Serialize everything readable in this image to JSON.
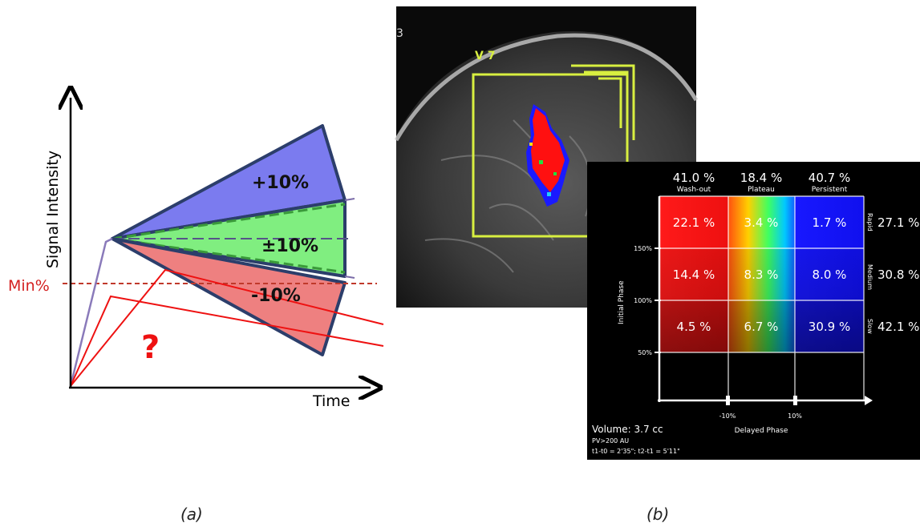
{
  "panel_a": {
    "y_axis_label": "Signal Intensity",
    "x_axis_label": "Time",
    "min_label": "Min%",
    "upper_label": "+10%",
    "middle_label": "±10%",
    "lower_label": "-10%",
    "question_mark": "?",
    "caption": "(a)",
    "colors": {
      "upper": "#7b7bef",
      "middle": "#7fef7f",
      "lower": "#ef7f7f",
      "min_line": "#c0392b",
      "question": "#ee1111"
    }
  },
  "panel_b": {
    "mri_label": "V 7",
    "mri_corner": "3",
    "caption": "(b)",
    "table": {
      "columns": [
        {
          "percent": "41.0 %",
          "label": "Wash-out"
        },
        {
          "percent": "18.4 %",
          "label": "Plateau"
        },
        {
          "percent": "40.7 %",
          "label": "Persistent"
        }
      ],
      "rows": [
        {
          "label": "Rapid",
          "percent": "27.1 %",
          "cells": [
            "22.1 %",
            "3.4 %",
            "1.7 %"
          ]
        },
        {
          "label": "Medium",
          "percent": "30.8 %",
          "cells": [
            "14.4 %",
            "8.3 %",
            "8.0 %"
          ]
        },
        {
          "label": "Slow",
          "percent": "42.1 %",
          "cells": [
            "4.5 %",
            "6.7 %",
            "30.9 %"
          ]
        }
      ],
      "y_ticks": [
        "150%",
        "100%",
        "50%"
      ],
      "x_ticks": [
        "-10%",
        "10%"
      ],
      "y_axis_label": "Initial Phase",
      "x_axis_label": "Delayed Phase",
      "volume": "Volume: 3.7 cc",
      "pv": "PV>200 AU",
      "times": "t1-t0 = 2'35\"; t2-t1 = 5'11\""
    }
  }
}
